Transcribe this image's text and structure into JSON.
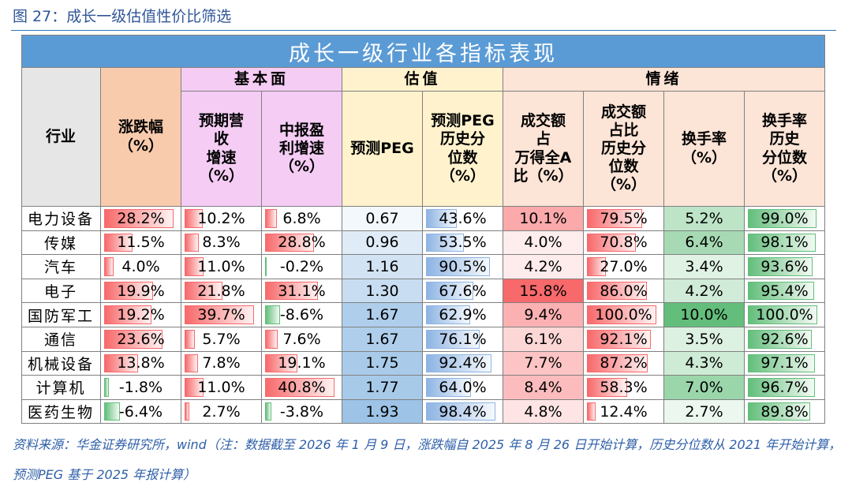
{
  "caption": "图 27：成长一级估值性价比筛选",
  "table": {
    "title": "成长一级行业各指标表现",
    "header": [
      {
        "label": "行业",
        "fill": "#e7e6e6"
      },
      {
        "label": "涨跌幅\n（%）",
        "fill": "#f8cbad",
        "style": "bar",
        "color": "#f8696b"
      },
      {
        "group": "基本面",
        "fill": "#f4ccf4",
        "columns": [
          {
            "label": "预期营\n收\n增速\n（%）",
            "style": "bar",
            "color": "#f8696b"
          },
          {
            "label": "中报盈\n利增速\n（%）",
            "style": "bar",
            "color": "#f8696b"
          }
        ]
      },
      {
        "group": "估值",
        "fill": "#fff2cc",
        "columns": [
          {
            "label": "预测PEG",
            "style": "heat",
            "color": "#9dc3e6"
          },
          {
            "label": "预测PEG\n历史分\n位数\n（%）",
            "style": "bar",
            "color": "#8eb4e3"
          }
        ]
      },
      {
        "group": "情绪",
        "fill": "#fce4d6",
        "columns": [
          {
            "label": "成交额\n占\n万得全A\n比（%）",
            "style": "heat",
            "color": "#f8696b"
          },
          {
            "label": "成交额\n占比\n历史分\n位数\n（%）",
            "style": "bar",
            "color": "#f8696b"
          },
          {
            "label": "换手率\n（%）",
            "style": "heat",
            "color": "#63be7b"
          },
          {
            "label": "换手率\n历史\n分位数\n（%）",
            "style": "bar",
            "color": "#63be7b"
          }
        ]
      }
    ],
    "rows": [
      [
        "电力设备",
        "28.2%",
        "10.2%",
        "6.8%",
        "0.67",
        "43.6%",
        "10.1%",
        "79.5%",
        "5.2%",
        "99.0%"
      ],
      [
        "传媒",
        "11.5%",
        "8.3%",
        "28.8%",
        "0.96",
        "53.5%",
        "4.0%",
        "70.8%",
        "6.4%",
        "98.1%"
      ],
      [
        "汽车",
        "4.0%",
        "11.0%",
        "-0.2%",
        "1.16",
        "90.5%",
        "4.2%",
        "27.0%",
        "3.4%",
        "93.6%"
      ],
      [
        "电子",
        "19.9%",
        "21.8%",
        "31.1%",
        "1.30",
        "67.6%",
        "15.8%",
        "86.0%",
        "4.2%",
        "95.4%"
      ],
      [
        "国防军工",
        "19.2%",
        "39.7%",
        "-8.6%",
        "1.67",
        "62.9%",
        "9.4%",
        "100.0%",
        "10.0%",
        "100.0%"
      ],
      [
        "通信",
        "23.6%",
        "5.7%",
        "7.6%",
        "1.67",
        "76.1%",
        "6.1%",
        "92.1%",
        "3.5%",
        "92.6%"
      ],
      [
        "机械设备",
        "13.8%",
        "7.8%",
        "19.1%",
        "1.75",
        "92.4%",
        "7.7%",
        "87.2%",
        "4.3%",
        "97.1%"
      ],
      [
        "计算机",
        "-1.8%",
        "11.0%",
        "40.8%",
        "1.77",
        "64.0%",
        "8.4%",
        "58.3%",
        "7.0%",
        "96.7%"
      ],
      [
        "医药生物",
        "-6.4%",
        "2.7%",
        "-3.8%",
        "1.93",
        "98.4%",
        "4.8%",
        "12.4%",
        "2.7%",
        "89.8%"
      ]
    ]
  },
  "note": "资料来源：华金证券研究所，wind（注：数据截至 2026 年 1 月 9 日，涨跌幅自 2025 年 8 月 26 日开始计算，历史分位数从 2021 年开始计算，预测PEG 基于 2025 年报计算）"
}
